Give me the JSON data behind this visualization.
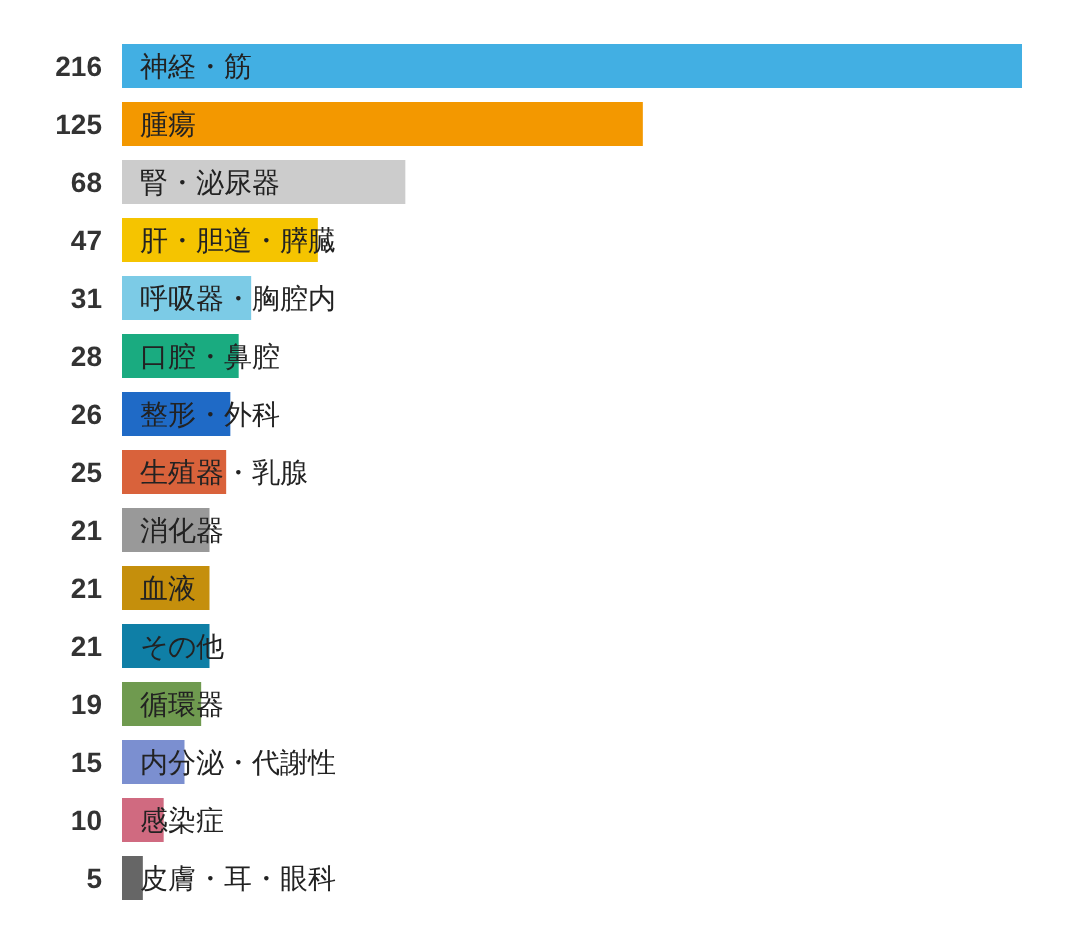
{
  "chart_data": {
    "type": "bar",
    "orientation": "horizontal",
    "data_labels": true,
    "categories": [
      "神経・筋",
      "腫瘍",
      "腎・泌尿器",
      "肝・胆道・膵臓",
      "呼吸器・胸腔内",
      "口腔・鼻腔",
      "整形・外科",
      "生殖器・乳腺",
      "消化器",
      "血液",
      "その他",
      "循環器",
      "内分泌・代謝性",
      "感染症",
      "皮膚・耳・眼科"
    ],
    "values": [
      216,
      125,
      68,
      47,
      31,
      28,
      26,
      25,
      21,
      21,
      21,
      19,
      15,
      10,
      5
    ],
    "colors": [
      "#42afe3",
      "#f39800",
      "#cccccc",
      "#f5c400",
      "#7ccbe6",
      "#1aab80",
      "#1f6ac6",
      "#d9623b",
      "#999999",
      "#c58f0c",
      "#0f7fa6",
      "#6f9a4f",
      "#7b8fd0",
      "#d06a80",
      "#666666"
    ]
  }
}
